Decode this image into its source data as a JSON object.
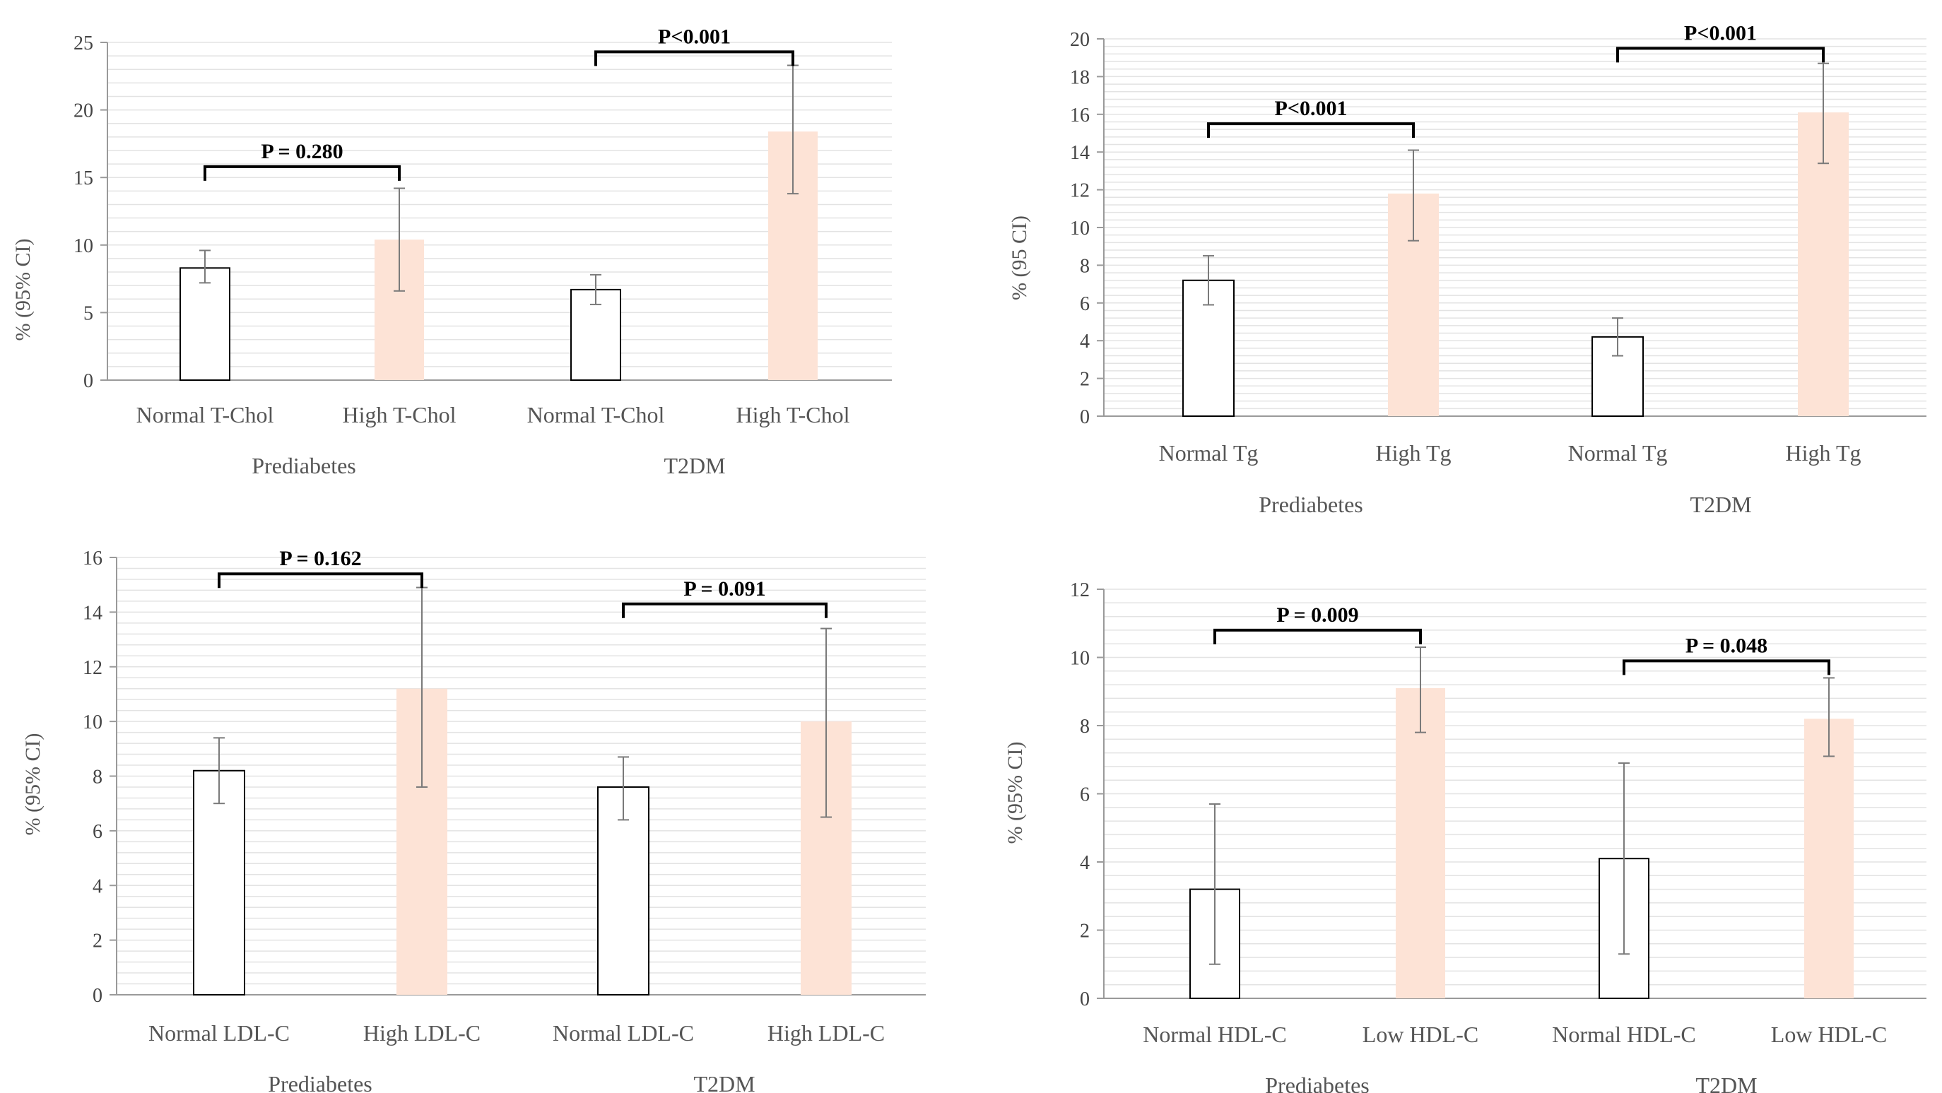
{
  "colors": {
    "normal_fill": "#ffffff",
    "normal_stroke": "#000000",
    "high_fill": "#fde3d6",
    "gridline": "#e3e3e3",
    "axis": "#9a9a9a",
    "error_bar": "#7a7a7a",
    "bracket": "#000000"
  },
  "chart_data": [
    {
      "id": "tchol",
      "type": "bar",
      "ylabel": "% (95% CI)",
      "ylim": [
        0,
        25
      ],
      "major_ticks": [
        0,
        5,
        10,
        15,
        20,
        25
      ],
      "minor_step": 1,
      "groups": [
        "Prediabetes",
        "T2DM"
      ],
      "categories": [
        "Normal T-Chol",
        "High T-Chol",
        "Normal T-Chol",
        "High T-Chol"
      ],
      "values": [
        8.3,
        10.4,
        6.7,
        18.4
      ],
      "ci_low": [
        7.2,
        6.6,
        5.6,
        13.8
      ],
      "ci_high": [
        9.6,
        14.2,
        7.8,
        23.3
      ],
      "styles": [
        "normal",
        "high",
        "normal",
        "high"
      ],
      "comparisons": [
        {
          "from": 0,
          "to": 1,
          "label": "P = 0.280",
          "y": 15.8
        },
        {
          "from": 2,
          "to": 3,
          "label": "P<0.001",
          "y": 24.3
        }
      ]
    },
    {
      "id": "tg",
      "type": "bar",
      "ylabel": "% (95 CI)",
      "ylim": [
        0,
        20
      ],
      "major_ticks": [
        0,
        2,
        4,
        6,
        8,
        10,
        12,
        14,
        16,
        18,
        20
      ],
      "minor_step": 0.4,
      "groups": [
        "Prediabetes",
        "T2DM"
      ],
      "categories": [
        "Normal Tg",
        "High Tg",
        "Normal Tg",
        "High Tg"
      ],
      "values": [
        7.2,
        11.8,
        4.2,
        16.1
      ],
      "ci_low": [
        5.9,
        9.3,
        3.2,
        13.4
      ],
      "ci_high": [
        8.5,
        14.1,
        5.2,
        18.7
      ],
      "styles": [
        "normal",
        "high",
        "normal",
        "high"
      ],
      "comparisons": [
        {
          "from": 0,
          "to": 1,
          "label": "P<0.001",
          "y": 15.5
        },
        {
          "from": 2,
          "to": 3,
          "label": "P<0.001",
          "y": 19.5
        }
      ]
    },
    {
      "id": "ldl",
      "type": "bar",
      "ylabel": "% (95% CI)",
      "ylim": [
        0,
        16
      ],
      "major_ticks": [
        0,
        2,
        4,
        6,
        8,
        10,
        12,
        14,
        16
      ],
      "minor_step": 0.4,
      "groups": [
        "Prediabetes",
        "T2DM"
      ],
      "categories": [
        "Normal LDL-C",
        "High LDL-C",
        "Normal LDL-C",
        "High LDL-C"
      ],
      "values": [
        8.2,
        11.2,
        7.6,
        10.0
      ],
      "ci_low": [
        7.0,
        7.6,
        6.4,
        6.5
      ],
      "ci_high": [
        9.4,
        14.9,
        8.7,
        13.4
      ],
      "styles": [
        "normal",
        "high",
        "normal",
        "high"
      ],
      "comparisons": [
        {
          "from": 0,
          "to": 1,
          "label": "P = 0.162",
          "y": 15.4
        },
        {
          "from": 2,
          "to": 3,
          "label": "P = 0.091",
          "y": 14.3
        }
      ]
    },
    {
      "id": "hdl",
      "type": "bar",
      "ylabel": "% (95% CI)",
      "ylim": [
        0,
        12
      ],
      "major_ticks": [
        0,
        2,
        4,
        6,
        8,
        10,
        12
      ],
      "minor_step": 0.4,
      "groups": [
        "Prediabetes",
        "T2DM"
      ],
      "categories": [
        "Normal HDL-C",
        "Low HDL-C",
        "Normal HDL-C",
        "Low HDL-C"
      ],
      "values": [
        3.2,
        9.1,
        4.1,
        8.2
      ],
      "ci_low": [
        1.0,
        7.8,
        1.3,
        7.1
      ],
      "ci_high": [
        5.7,
        10.3,
        6.9,
        9.4
      ],
      "styles": [
        "normal",
        "high",
        "normal",
        "high"
      ],
      "comparisons": [
        {
          "from": 0,
          "to": 1,
          "label": "P = 0.009",
          "y": 10.8
        },
        {
          "from": 2,
          "to": 3,
          "label": "P = 0.048",
          "y": 9.9
        }
      ]
    }
  ]
}
